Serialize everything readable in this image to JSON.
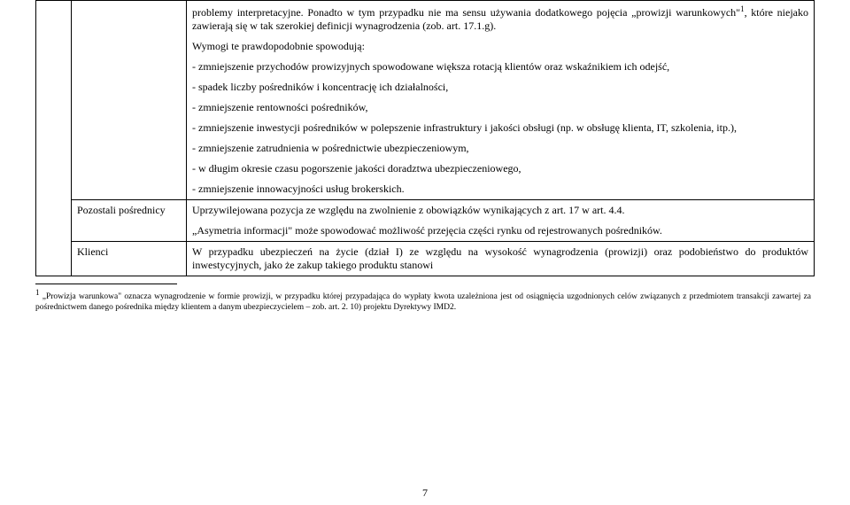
{
  "table": {
    "row0": {
      "col0": "",
      "col1": "",
      "para1_a": "problemy interpretacyjne. Ponadto w tym przypadku nie ma sensu używania dodatkowego pojęcia „prowizji warunkowych\"",
      "para1_sup": "1",
      "para1_b": ", które niejako zawierają się w tak szerokiej definicji wynagrodzenia (zob. art. 17.1.g).",
      "para2": "Wymogi te prawdopodobnie spowodują:",
      "bullet1": "- zmniejszenie przychodów prowizyjnych spowodowane większa rotacją klientów oraz wskaźnikiem ich odejść,",
      "bullet2": "- spadek liczby pośredników i koncentrację ich działalności,",
      "bullet3": "- zmniejszenie rentowności pośredników,",
      "bullet4": "- zmniejszenie inwestycji pośredników w polepszenie infrastruktury i jakości obsługi (np. w obsługę klienta, IT, szkolenia, itp.),",
      "bullet5": "- zmniejszenie zatrudnienia w pośrednictwie ubezpieczeniowym,",
      "bullet6": "- w długim okresie czasu pogorszenie jakości doradztwa ubezpieczeniowego,",
      "bullet7": "- zmniejszenie innowacyjności usług brokerskich."
    },
    "row1": {
      "col1": "Pozostali pośrednicy",
      "para1": "Uprzywilejowana pozycja ze względu na zwolnienie z obowiązków wynikających z art. 17 w art. 4.4.",
      "para2": "„Asymetria informacji\" może spowodować możliwość przejęcia części rynku od rejestrowanych pośredników."
    },
    "row2": {
      "col1": "Klienci",
      "para1": "W przypadku ubezpieczeń na życie (dział I) ze względu na wysokość wynagrodzenia (prowizji) oraz podobieństwo do produktów inwestycyjnych, jako że zakup takiego produktu stanowi"
    }
  },
  "footnote": {
    "marker": "1",
    "text": " „Prowizja warunkowa\" oznacza wynagrodzenie w formie prowizji, w przypadku której przypadająca do wypłaty kwota uzależniona jest od osiągnięcia uzgodnionych celów związanych z przedmiotem transakcji zawartej za pośrednictwem danego pośrednika między klientem a danym ubezpieczycielem – zob. art. 2. 10) projektu Dyrektywy IMD2."
  },
  "page_number": "7"
}
